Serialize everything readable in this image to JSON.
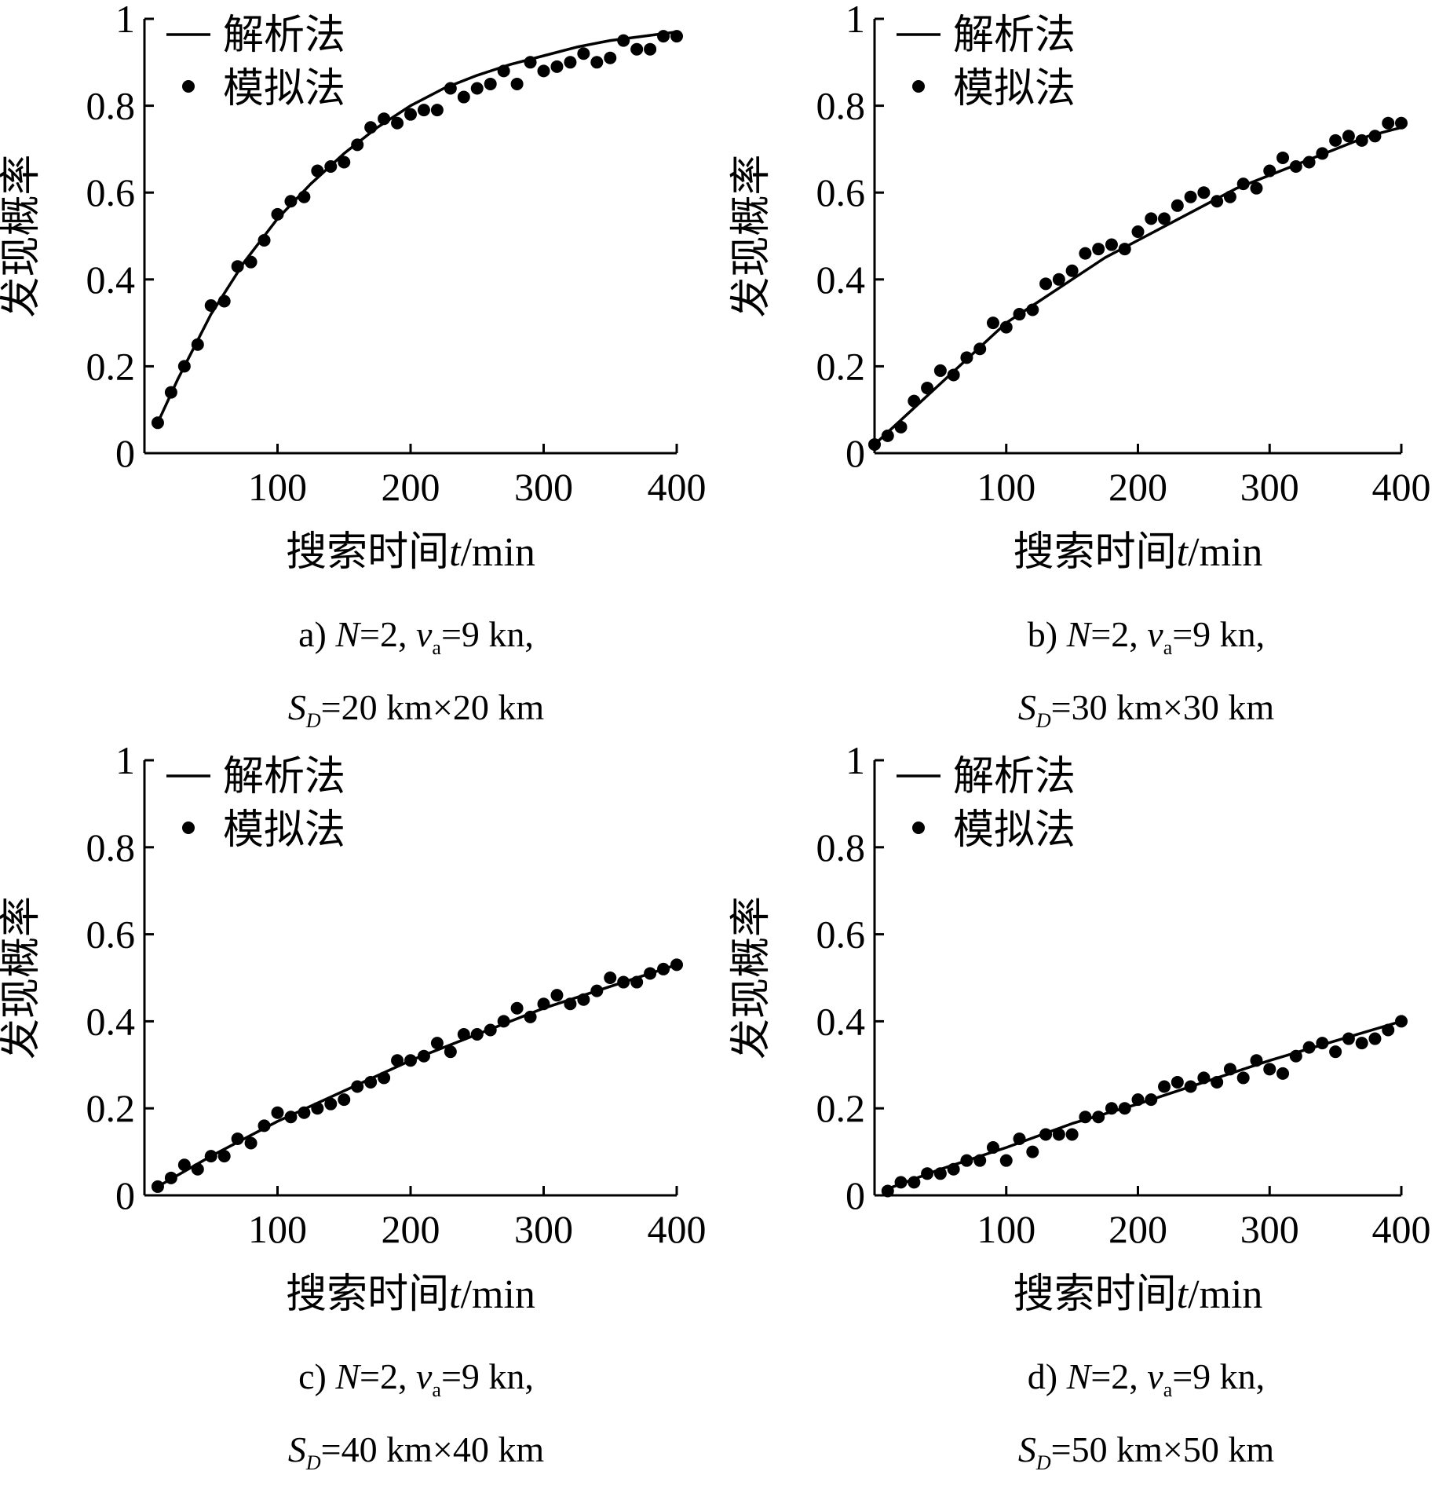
{
  "legend": {
    "line_label": "解析法",
    "dot_label": "模拟法"
  },
  "axis_text": {
    "ylabel": "发现概率",
    "xlabel_prefix": "搜索时间",
    "xlabel_var": "t",
    "xlabel_unit": "/min"
  },
  "charts": [
    {
      "caption": {
        "tag": "a)",
        "N": "N",
        "n_val": "=2,",
        "v": "v",
        "v_sub": "a",
        "v_val": "=9 kn,",
        "S": "S",
        "S_sub": "D",
        "S_val": "=20 km×20 km"
      }
    },
    {
      "caption": {
        "tag": "b)",
        "N": "N",
        "n_val": "=2,",
        "v": "v",
        "v_sub": "a",
        "v_val": "=9 kn,",
        "S": "S",
        "S_sub": "D",
        "S_val": "=30 km×30 km"
      }
    },
    {
      "caption": {
        "tag": "c)",
        "N": "N",
        "n_val": "=2,",
        "v": "v",
        "v_sub": "a",
        "v_val": "=9 kn,",
        "S": "S",
        "S_sub": "D",
        "S_val": "=40 km×40 km"
      }
    },
    {
      "caption": {
        "tag": "d)",
        "N": "N",
        "n_val": "=2,",
        "v": "v",
        "v_sub": "a",
        "v_val": "=9 kn,",
        "S": "S",
        "S_sub": "D",
        "S_val": "=50 km×50 km"
      }
    }
  ],
  "chart_data": [
    {
      "type": "line",
      "xlim": [
        0,
        400
      ],
      "ylim": [
        0,
        1
      ],
      "xticks": [
        100,
        200,
        300,
        400
      ],
      "yticks": [
        0,
        0.2,
        0.4,
        0.6,
        0.8,
        1
      ],
      "ytick_labels": [
        "0",
        "0.2",
        "0.4",
        "0.6",
        "0.8",
        "1"
      ],
      "grid": false,
      "legend_position": "top-left",
      "series": [
        {
          "name": "解析法",
          "style": "line",
          "x": [
            10,
            25,
            50,
            75,
            100,
            125,
            150,
            175,
            200,
            225,
            250,
            275,
            300,
            325,
            350,
            375,
            400
          ],
          "y": [
            0.07,
            0.17,
            0.32,
            0.44,
            0.54,
            0.62,
            0.69,
            0.75,
            0.8,
            0.84,
            0.87,
            0.895,
            0.915,
            0.935,
            0.95,
            0.96,
            0.97
          ]
        },
        {
          "name": "模拟法",
          "style": "scatter",
          "x": [
            10,
            20,
            30,
            40,
            50,
            60,
            70,
            80,
            90,
            100,
            110,
            120,
            130,
            140,
            150,
            160,
            170,
            180,
            190,
            200,
            210,
            220,
            230,
            240,
            250,
            260,
            270,
            280,
            290,
            300,
            310,
            320,
            330,
            340,
            350,
            360,
            370,
            380,
            390,
            400
          ],
          "y": [
            0.07,
            0.14,
            0.2,
            0.25,
            0.34,
            0.35,
            0.43,
            0.44,
            0.49,
            0.55,
            0.58,
            0.59,
            0.65,
            0.66,
            0.67,
            0.71,
            0.75,
            0.77,
            0.76,
            0.78,
            0.79,
            0.79,
            0.84,
            0.82,
            0.84,
            0.85,
            0.88,
            0.85,
            0.9,
            0.88,
            0.89,
            0.9,
            0.92,
            0.9,
            0.91,
            0.95,
            0.93,
            0.93,
            0.96,
            0.96
          ]
        }
      ]
    },
    {
      "type": "line",
      "xlim": [
        0,
        400
      ],
      "ylim": [
        0,
        1
      ],
      "xticks": [
        100,
        200,
        300,
        400
      ],
      "yticks": [
        0,
        0.2,
        0.4,
        0.6,
        0.8,
        1
      ],
      "ytick_labels": [
        "0",
        "0.2",
        "0.4",
        "0.6",
        "0.8",
        "1"
      ],
      "grid": false,
      "legend_position": "top-left",
      "series": [
        {
          "name": "解析法",
          "style": "line",
          "x": [
            0,
            25,
            50,
            75,
            100,
            125,
            150,
            175,
            200,
            225,
            250,
            275,
            300,
            325,
            350,
            375,
            400
          ],
          "y": [
            0.02,
            0.09,
            0.16,
            0.23,
            0.3,
            0.35,
            0.4,
            0.45,
            0.49,
            0.53,
            0.57,
            0.61,
            0.64,
            0.67,
            0.7,
            0.73,
            0.75
          ]
        },
        {
          "name": "模拟法",
          "style": "scatter",
          "x": [
            0,
            10,
            20,
            30,
            40,
            50,
            60,
            70,
            80,
            90,
            100,
            110,
            120,
            130,
            140,
            150,
            160,
            170,
            180,
            190,
            200,
            210,
            220,
            230,
            240,
            250,
            260,
            270,
            280,
            290,
            300,
            310,
            320,
            330,
            340,
            350,
            360,
            370,
            380,
            390,
            400
          ],
          "y": [
            0.02,
            0.04,
            0.06,
            0.12,
            0.15,
            0.19,
            0.18,
            0.22,
            0.24,
            0.3,
            0.29,
            0.32,
            0.33,
            0.39,
            0.4,
            0.42,
            0.46,
            0.47,
            0.48,
            0.47,
            0.51,
            0.54,
            0.54,
            0.57,
            0.59,
            0.6,
            0.58,
            0.59,
            0.62,
            0.61,
            0.65,
            0.68,
            0.66,
            0.67,
            0.69,
            0.72,
            0.73,
            0.72,
            0.73,
            0.76,
            0.76
          ]
        }
      ]
    },
    {
      "type": "line",
      "xlim": [
        0,
        400
      ],
      "ylim": [
        0,
        1
      ],
      "xticks": [
        100,
        200,
        300,
        400
      ],
      "yticks": [
        0,
        0.2,
        0.4,
        0.6,
        0.8,
        1
      ],
      "ytick_labels": [
        "0",
        "0.2",
        "0.4",
        "0.6",
        "0.8",
        "1"
      ],
      "grid": false,
      "legend_position": "top-left",
      "series": [
        {
          "name": "解析法",
          "style": "line",
          "x": [
            10,
            50,
            100,
            150,
            200,
            250,
            300,
            350,
            400
          ],
          "y": [
            0.02,
            0.09,
            0.17,
            0.24,
            0.31,
            0.37,
            0.43,
            0.48,
            0.53
          ]
        },
        {
          "name": "模拟法",
          "style": "scatter",
          "x": [
            10,
            20,
            30,
            40,
            50,
            60,
            70,
            80,
            90,
            100,
            110,
            120,
            130,
            140,
            150,
            160,
            170,
            180,
            190,
            200,
            210,
            220,
            230,
            240,
            250,
            260,
            270,
            280,
            290,
            300,
            310,
            320,
            330,
            340,
            350,
            360,
            370,
            380,
            390,
            400
          ],
          "y": [
            0.02,
            0.04,
            0.07,
            0.06,
            0.09,
            0.09,
            0.13,
            0.12,
            0.16,
            0.19,
            0.18,
            0.19,
            0.2,
            0.21,
            0.22,
            0.25,
            0.26,
            0.27,
            0.31,
            0.31,
            0.32,
            0.35,
            0.33,
            0.37,
            0.37,
            0.38,
            0.4,
            0.43,
            0.41,
            0.44,
            0.46,
            0.44,
            0.45,
            0.47,
            0.5,
            0.49,
            0.49,
            0.51,
            0.52,
            0.53
          ]
        }
      ]
    },
    {
      "type": "line",
      "xlim": [
        0,
        400
      ],
      "ylim": [
        0,
        1
      ],
      "xticks": [
        100,
        200,
        300,
        400
      ],
      "yticks": [
        0,
        0.2,
        0.4,
        0.6,
        0.8,
        1
      ],
      "ytick_labels": [
        "0",
        "0.2",
        "0.4",
        "0.6",
        "0.8",
        "1"
      ],
      "grid": false,
      "legend_position": "top-left",
      "series": [
        {
          "name": "解析法",
          "style": "line",
          "x": [
            10,
            50,
            100,
            150,
            200,
            250,
            300,
            350,
            400
          ],
          "y": [
            0.015,
            0.06,
            0.11,
            0.165,
            0.21,
            0.26,
            0.31,
            0.355,
            0.4
          ]
        },
        {
          "name": "模拟法",
          "style": "scatter",
          "x": [
            10,
            20,
            30,
            40,
            50,
            60,
            70,
            80,
            90,
            100,
            110,
            120,
            130,
            140,
            150,
            160,
            170,
            180,
            190,
            200,
            210,
            220,
            230,
            240,
            250,
            260,
            270,
            280,
            290,
            300,
            310,
            320,
            330,
            340,
            350,
            360,
            370,
            380,
            390,
            400
          ],
          "y": [
            0.01,
            0.03,
            0.03,
            0.05,
            0.05,
            0.06,
            0.08,
            0.08,
            0.11,
            0.08,
            0.13,
            0.1,
            0.14,
            0.14,
            0.14,
            0.18,
            0.18,
            0.2,
            0.2,
            0.22,
            0.22,
            0.25,
            0.26,
            0.25,
            0.27,
            0.26,
            0.29,
            0.27,
            0.31,
            0.29,
            0.28,
            0.32,
            0.34,
            0.35,
            0.33,
            0.36,
            0.35,
            0.36,
            0.38,
            0.4
          ]
        }
      ]
    }
  ]
}
